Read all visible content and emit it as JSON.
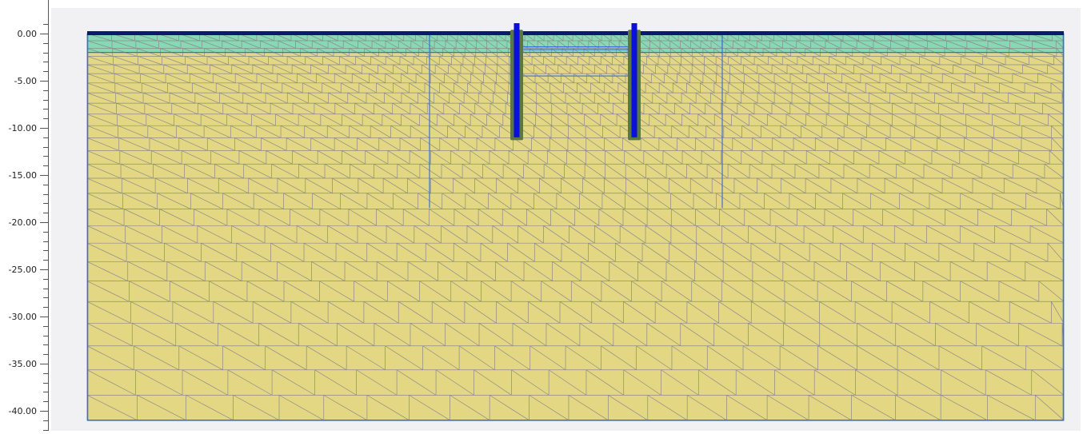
{
  "view": {
    "axis_labels": [
      "0.00",
      "-5.00",
      "-10.00",
      "-15.00",
      "-20.00",
      "-25.00",
      "-30.00",
      "-35.00",
      "-40.00"
    ]
  },
  "model": {
    "depth_range": [
      0,
      -41
    ],
    "top_layer": {
      "from": 0,
      "to": -2,
      "color": "#86d9b4"
    },
    "soil": {
      "color": "#e4d783"
    },
    "mesh_color": "#8a8a8a",
    "boundary_color": "#3c6fd6",
    "ground_line_color": "#0a1a6e",
    "wall_color": "#0a10d8",
    "interface_color": "#5a7840"
  }
}
